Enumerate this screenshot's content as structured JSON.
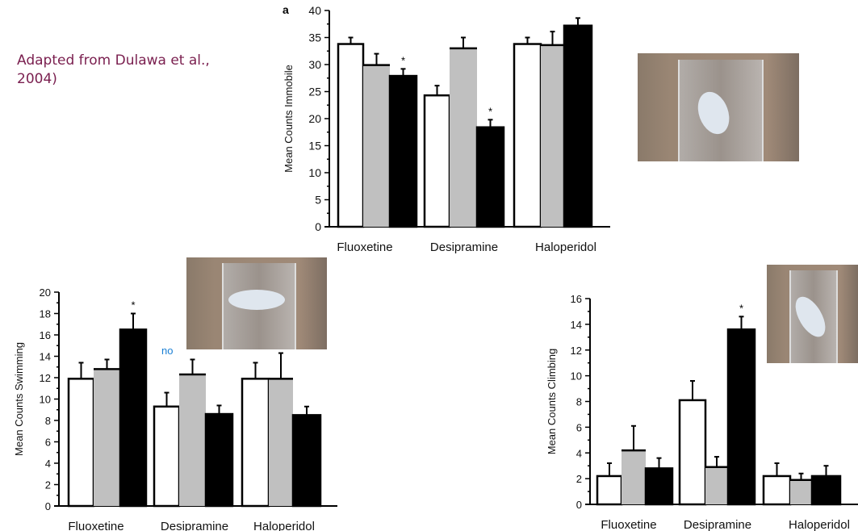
{
  "credit": "Adapted from Dulawa et al., 2004)",
  "annotation": "no",
  "photos": [
    "mouse-immobile-photo",
    "mouse-swimming-photo",
    "mouse-climbing-photo"
  ],
  "colors": {
    "series": [
      "#ffffff",
      "#c0c0c0",
      "#000000"
    ],
    "credit": "#7a1f4f",
    "annotation": "#1a7fd4"
  },
  "chart_data": [
    {
      "type": "bar",
      "panel_label": "a",
      "ylabel": "Mean Counts Immobile",
      "ylim": [
        0,
        40
      ],
      "yticks": [
        0,
        5,
        10,
        15,
        20,
        25,
        30,
        35,
        40
      ],
      "categories": [
        "Fluoxetine",
        "Desipramine",
        "Haloperidol"
      ],
      "series": [
        {
          "values": [
            33.8,
            24.3,
            33.8
          ],
          "errors": [
            1.2,
            1.8,
            1.2
          ]
        },
        {
          "values": [
            29.9,
            33,
            33.6
          ],
          "errors": [
            2.1,
            2,
            2.5
          ]
        },
        {
          "values": [
            27.9,
            18.4,
            37.2
          ],
          "errors": [
            1.3,
            1.4,
            1.4
          ]
        }
      ],
      "significance": [
        [
          0,
          2
        ],
        [
          1,
          2
        ]
      ]
    },
    {
      "type": "bar",
      "ylabel": "Mean Counts Swimming",
      "ylim": [
        0,
        20
      ],
      "yticks": [
        0,
        2,
        4,
        6,
        8,
        10,
        12,
        14,
        16,
        18,
        20
      ],
      "categories": [
        "Fluoxetine",
        "Desipramine",
        "Haloperidol"
      ],
      "series": [
        {
          "values": [
            11.9,
            9.3,
            11.9
          ],
          "errors": [
            1.5,
            1.3,
            1.5
          ]
        },
        {
          "values": [
            12.8,
            12.3,
            11.9
          ],
          "errors": [
            0.9,
            1.4,
            2.4
          ]
        },
        {
          "values": [
            16.5,
            8.6,
            8.5
          ],
          "errors": [
            1.5,
            0.8,
            0.8
          ]
        }
      ],
      "significance": [
        [
          0,
          2
        ]
      ]
    },
    {
      "type": "bar",
      "ylabel": "Mean Counts Climbing",
      "ylim": [
        0,
        16
      ],
      "yticks": [
        0,
        2,
        4,
        6,
        8,
        10,
        12,
        14,
        16
      ],
      "categories": [
        "Fluoxetine",
        "Desipramine",
        "Haloperidol"
      ],
      "series": [
        {
          "values": [
            2.2,
            8.1,
            2.2
          ],
          "errors": [
            1,
            1.5,
            1
          ]
        },
        {
          "values": [
            4.2,
            2.9,
            1.9
          ],
          "errors": [
            1.9,
            0.8,
            0.5
          ]
        },
        {
          "values": [
            2.8,
            13.6,
            2.2
          ],
          "errors": [
            0.8,
            1,
            0.8
          ]
        }
      ],
      "significance": [
        [
          1,
          2
        ]
      ]
    }
  ]
}
